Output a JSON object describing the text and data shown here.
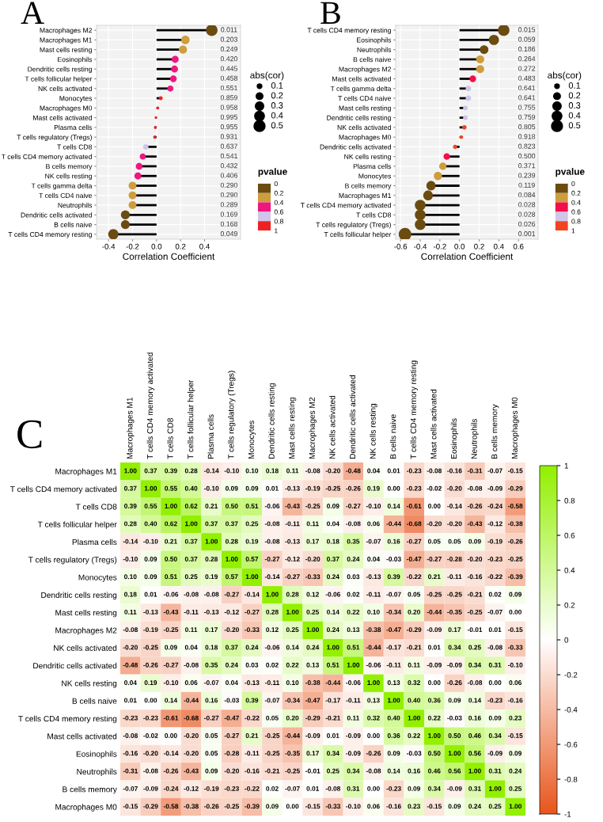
{
  "chart_data": [
    {
      "type": "lollipop",
      "title": "A",
      "orientation": "horizontal",
      "xlabel": "Correlation Coefficient",
      "categories": [
        "Macrophages M2",
        "Macrophages M1",
        "Mast cells resting",
        "Eosinophils",
        "Dendritic cells resting",
        "T cells follicular helper",
        "NK cells activated",
        "Monocytes",
        "Macrophages M0",
        "Mast cells activated",
        "Plasma cells",
        "T cells regulatory (Tregs)",
        "T cells CD8",
        "T cells CD4 memory activated",
        "B cells memory",
        "NK cells resting",
        "T cells gamma delta",
        "T cells CD4 naive",
        "Neutrophils",
        "Dendritic cells activated",
        "B cells naive",
        "T cells CD4 memory resting"
      ],
      "values": [
        0.46,
        0.24,
        0.22,
        0.155,
        0.15,
        0.14,
        0.115,
        0.035,
        0.01,
        -0.005,
        -0.01,
        -0.015,
        -0.09,
        -0.115,
        -0.145,
        -0.155,
        -0.2,
        -0.2,
        -0.2,
        -0.26,
        -0.26,
        -0.36
      ],
      "sizes": [
        0.46,
        0.24,
        0.22,
        0.155,
        0.15,
        0.14,
        0.115,
        0.035,
        0.01,
        0.005,
        0.01,
        0.015,
        0.09,
        0.115,
        0.145,
        0.155,
        0.2,
        0.2,
        0.2,
        0.26,
        0.26,
        0.36
      ],
      "y2_categories": [
        "0.011",
        "0.203",
        "0.249",
        "0.420",
        "0.445",
        "0.458",
        "0.551",
        "0.859",
        "0.958",
        "0.995",
        "0.955",
        "0.931",
        "0.637",
        "0.541",
        "0.432",
        "0.406",
        "0.290",
        "0.290",
        "0.289",
        "0.169",
        "0.168",
        "0.049"
      ],
      "colors": [
        "#6b4b10",
        "#cd9d3e",
        "#cd9d3e",
        "#ee1780",
        "#ee1780",
        "#ee1780",
        "#ee1780",
        "#ee2222",
        "#ee2222",
        "#ee2222",
        "#ee2222",
        "#ee2222",
        "#cfc6ea",
        "#ee1780",
        "#ee1780",
        "#ee1780",
        "#cd9d3e",
        "#cd9d3e",
        "#cd9d3e",
        "#6b4b10",
        "#6b4b10",
        "#6b4b10"
      ],
      "xlim": [
        -0.5,
        0.7
      ],
      "xticks": [
        -0.4,
        -0.2,
        {
          "value": 0,
          "label": "0.0"
        },
        0.2,
        0.4
      ],
      "legend_title": "abs(cor)",
      "size_legend": [
        0.1,
        0.2,
        0.3,
        0.4,
        0.5
      ],
      "clabel": "pvalue",
      "clim": [
        0,
        1
      ],
      "cticks": [
        0,
        0.2,
        0.4,
        0.6,
        0.8,
        1
      ],
      "grid": true
    },
    {
      "type": "lollipop",
      "title": "B",
      "orientation": "horizontal",
      "xlabel": "Correlation Coefficient",
      "categories": [
        "T cells CD4 memory resting",
        "Eosinophils",
        "Neutrophils",
        "B cells naive",
        "Macrophages M2",
        "Mast cells activated",
        "T cells gamma delta",
        "T cells CD4 naive",
        "Mast cells resting",
        "Dendritic cells resting",
        "NK cells activated",
        "Macrophages M0",
        "Dendritic cells activated",
        "NK cells resting",
        "Plasma cells",
        "Monocytes",
        "B cells memory",
        "Macrophages M1",
        "T cells CD4 memory activated",
        "T cells CD8",
        "T cells regulatory (Tregs)",
        "T cells follicular helper"
      ],
      "values": [
        0.45,
        0.35,
        0.25,
        0.21,
        0.21,
        0.135,
        0.09,
        0.09,
        0.06,
        0.06,
        0.05,
        0.02,
        -0.045,
        -0.13,
        -0.17,
        -0.22,
        -0.29,
        -0.32,
        -0.4,
        -0.4,
        -0.4,
        -0.555
      ],
      "sizes": [
        0.45,
        0.35,
        0.25,
        0.21,
        0.21,
        0.135,
        0.09,
        0.09,
        0.06,
        0.06,
        0.05,
        0.02,
        0.045,
        0.13,
        0.17,
        0.22,
        0.29,
        0.32,
        0.4,
        0.4,
        0.4,
        0.555
      ],
      "y2_categories": [
        "0.015",
        "0.059",
        "0.186",
        "0.264",
        "0.272",
        "0.483",
        "0.641",
        "0.641",
        "0.755",
        "0.759",
        "0.805",
        "0.918",
        "0.823",
        "0.500",
        "0.371",
        "0.239",
        "0.119",
        "0.084",
        "0.028",
        "0.028",
        "0.026",
        "0.001"
      ],
      "colors": [
        "#6b4b10",
        "#6b4b10",
        "#6b4b10",
        "#cd9d3e",
        "#cd9d3e",
        "#f0104a",
        "#cfc6ea",
        "#cfc6ea",
        "#cfc6ea",
        "#cfc6ea",
        "#f04420",
        "#f04420",
        "#f04420",
        "#f0104a",
        "#cd9d3e",
        "#cd9d3e",
        "#6b4b10",
        "#6b4b10",
        "#6b4b10",
        "#6b4b10",
        "#6b4b10",
        "#6b4b10"
      ],
      "xlim": [
        -0.65,
        0.8
      ],
      "xticks": [
        -0.6,
        -0.4,
        -0.2,
        {
          "value": 0,
          "label": "0.0"
        },
        0.2,
        0.4,
        0.6
      ],
      "legend_title": "abs(cor)",
      "size_legend": [
        0.1,
        0.2,
        0.3,
        0.4,
        0.5
      ],
      "clabel": "pvalue",
      "clim": [
        0,
        1
      ],
      "cticks": [
        0,
        0.2,
        0.4,
        0.6,
        0.8,
        1
      ],
      "grid": true
    },
    {
      "type": "heatmap",
      "title": "C",
      "data_labels": true,
      "categories": [
        "Macrophages M1",
        "T cells CD4 memory activated",
        "T cells CD8",
        "T cells follicular helper",
        "Plasma cells",
        "T cells regulatory (Tregs)",
        "Monocytes",
        "Dendritic cells resting",
        "Mast cells resting",
        "Macrophages M2",
        "NK cells activated",
        "Dendritic cells activated",
        "NK cells resting",
        "B cells naive",
        "T cells CD4 memory resting",
        "Mast cells activated",
        "Eosinophils",
        "Neutrophils",
        "B cells memory",
        "Macrophages M0"
      ],
      "y_categories": [
        "Macrophages M1",
        "T cells CD4 memory activated",
        "T cells CD8",
        "T cells follicular helper",
        "Plasma cells",
        "T cells regulatory (Tregs)",
        "Monocytes",
        "Dendritic cells resting",
        "Mast cells resting",
        "Macrophages M2",
        "NK cells activated",
        "Dendritic cells activated",
        "NK cells resting",
        "B cells naive",
        "T cells CD4 memory resting",
        "Mast cells activated",
        "Eosinophils",
        "Neutrophils",
        "B cells memory",
        "Macrophages M0"
      ],
      "cells": [
        [
          1.0,
          0.37,
          0.39,
          0.28,
          -0.14,
          -0.1,
          0.1,
          0.18,
          0.11,
          -0.08,
          -0.2,
          -0.48,
          0.04,
          0.01,
          -0.23,
          -0.08,
          -0.16,
          -0.31,
          -0.07,
          -0.15
        ],
        [
          0.37,
          1.0,
          0.55,
          0.4,
          -0.1,
          0.09,
          0.09,
          0.01,
          -0.13,
          -0.19,
          -0.25,
          -0.26,
          0.19,
          0.0,
          -0.23,
          -0.02,
          -0.2,
          -0.08,
          -0.09,
          -0.29
        ],
        [
          0.39,
          0.55,
          1.0,
          0.62,
          0.21,
          0.5,
          0.51,
          -0.06,
          -0.43,
          -0.25,
          0.09,
          -0.27,
          -0.1,
          0.14,
          -0.61,
          0.0,
          -0.14,
          -0.26,
          -0.24,
          -0.58
        ],
        [
          0.28,
          0.4,
          0.62,
          1.0,
          0.37,
          0.37,
          0.25,
          -0.08,
          -0.11,
          0.11,
          0.04,
          -0.08,
          0.06,
          -0.44,
          -0.68,
          -0.2,
          -0.2,
          -0.43,
          -0.12,
          -0.38
        ],
        [
          -0.14,
          -0.1,
          0.21,
          0.37,
          1.0,
          0.28,
          0.19,
          -0.08,
          -0.13,
          0.17,
          0.18,
          0.35,
          -0.07,
          0.16,
          -0.27,
          0.05,
          0.05,
          0.09,
          -0.19,
          -0.26
        ],
        [
          -0.1,
          0.09,
          0.5,
          0.37,
          0.28,
          1.0,
          0.57,
          -0.27,
          -0.12,
          -0.2,
          0.37,
          0.24,
          0.04,
          -0.03,
          -0.47,
          -0.27,
          -0.28,
          -0.2,
          -0.23,
          -0.25
        ],
        [
          0.1,
          0.09,
          0.51,
          0.25,
          0.19,
          0.57,
          1.0,
          -0.14,
          -0.27,
          -0.33,
          0.24,
          0.03,
          -0.13,
          0.39,
          -0.22,
          0.21,
          -0.11,
          -0.16,
          -0.22,
          -0.39
        ],
        [
          0.18,
          0.01,
          -0.06,
          -0.08,
          -0.08,
          -0.27,
          -0.14,
          1.0,
          0.28,
          0.12,
          -0.06,
          0.02,
          -0.11,
          -0.07,
          0.05,
          -0.25,
          -0.25,
          -0.21,
          0.02,
          0.09
        ],
        [
          0.11,
          -0.13,
          -0.43,
          -0.11,
          -0.13,
          -0.12,
          -0.27,
          0.28,
          1.0,
          0.25,
          0.14,
          0.22,
          0.1,
          -0.34,
          0.2,
          -0.44,
          -0.35,
          -0.25,
          -0.07,
          0.0
        ],
        [
          -0.08,
          -0.19,
          -0.25,
          0.11,
          0.17,
          -0.2,
          -0.33,
          0.12,
          0.25,
          1.0,
          0.24,
          0.13,
          -0.38,
          -0.47,
          -0.29,
          -0.09,
          0.17,
          -0.01,
          0.01,
          -0.15
        ],
        [
          -0.2,
          -0.25,
          0.09,
          0.04,
          0.18,
          0.37,
          0.24,
          -0.06,
          0.14,
          0.24,
          1.0,
          0.51,
          -0.44,
          -0.17,
          -0.21,
          0.01,
          0.34,
          0.25,
          -0.08,
          -0.33
        ],
        [
          -0.48,
          -0.26,
          -0.27,
          -0.08,
          0.35,
          0.24,
          0.03,
          0.02,
          0.22,
          0.13,
          0.51,
          1.0,
          -0.06,
          -0.11,
          0.11,
          -0.09,
          -0.09,
          0.34,
          0.31,
          -0.1
        ],
        [
          0.04,
          0.19,
          -0.1,
          0.06,
          -0.07,
          0.04,
          -0.13,
          -0.11,
          0.1,
          -0.38,
          -0.44,
          -0.06,
          1.0,
          0.13,
          0.32,
          0.0,
          -0.26,
          -0.08,
          0.0,
          0.06
        ],
        [
          0.01,
          0.0,
          0.14,
          -0.44,
          0.16,
          -0.03,
          0.39,
          -0.07,
          -0.34,
          -0.47,
          -0.17,
          -0.11,
          0.13,
          1.0,
          0.4,
          0.36,
          0.09,
          0.14,
          -0.23,
          -0.16
        ],
        [
          -0.23,
          -0.23,
          -0.61,
          -0.68,
          -0.27,
          -0.47,
          -0.22,
          0.05,
          0.2,
          -0.29,
          -0.21,
          0.11,
          0.32,
          0.4,
          1.0,
          0.22,
          -0.03,
          0.16,
          0.09,
          0.23
        ],
        [
          -0.08,
          -0.02,
          0.0,
          -0.2,
          0.05,
          -0.27,
          0.21,
          -0.25,
          -0.44,
          -0.09,
          0.01,
          -0.09,
          0.0,
          0.36,
          0.22,
          1.0,
          0.5,
          0.46,
          0.34,
          -0.15
        ],
        [
          -0.16,
          -0.2,
          -0.14,
          -0.2,
          0.05,
          -0.28,
          -0.11,
          -0.25,
          -0.35,
          0.17,
          0.34,
          -0.09,
          -0.26,
          0.09,
          -0.03,
          0.5,
          1.0,
          0.56,
          -0.09,
          0.09
        ],
        [
          -0.31,
          -0.08,
          -0.26,
          -0.43,
          0.09,
          -0.2,
          -0.16,
          -0.21,
          -0.25,
          -0.01,
          0.25,
          0.34,
          -0.08,
          0.14,
          0.16,
          0.46,
          0.56,
          1.0,
          0.31,
          0.24
        ],
        [
          -0.07,
          -0.09,
          -0.24,
          -0.12,
          -0.19,
          -0.23,
          -0.22,
          0.02,
          -0.07,
          0.01,
          -0.08,
          0.31,
          0.0,
          -0.23,
          0.09,
          0.34,
          -0.09,
          0.31,
          1.0,
          0.25
        ],
        [
          -0.15,
          -0.29,
          -0.58,
          -0.38,
          -0.26,
          -0.25,
          -0.39,
          0.09,
          0.0,
          -0.15,
          -0.33,
          -0.1,
          0.06,
          -0.16,
          0.23,
          -0.15,
          0.09,
          0.24,
          0.25,
          1.0
        ]
      ],
      "cell_labels": [
        [
          "1.00",
          "0.37",
          "0.39",
          "0.28",
          "-0.14",
          "-0.10",
          "0.10",
          "0.18",
          "0.11",
          "-0.08",
          "-0.20",
          "-0.48",
          "0.04",
          "0.01",
          "-0.23",
          "-0.08",
          "-0.16",
          "-0.31",
          "-0.07",
          "-0.15"
        ],
        [
          "0.37",
          "1.00",
          "0.55",
          "0.40",
          "-0.10",
          "0.09",
          "0.09",
          "0.01",
          "-0.13",
          "-0.19",
          "-0.25",
          "-0.26",
          "0.19",
          "0.00",
          "-0.23",
          "-0.02",
          "-0.20",
          "-0.08",
          "-0.09",
          "-0.29"
        ],
        [
          "0.39",
          "0.55",
          "1.00",
          "0.62",
          "0.21",
          "0.50",
          "0.51",
          "-0.06",
          "-0.43",
          "-0.25",
          "0.09",
          "-0.27",
          "-0.10",
          "0.14",
          "-0.61",
          "0.00",
          "-0.14",
          "-0.26",
          "-0.24",
          "-0.58"
        ],
        [
          "0.28",
          "0.40",
          "0.62",
          "1.00",
          "0.37",
          "0.37",
          "0.25",
          "-0.08",
          "-0.11",
          "0.11",
          "0.04",
          "-0.08",
          "0.06",
          "-0.44",
          "-0.68",
          "-0.20",
          "-0.20",
          "-0.43",
          "-0.12",
          "-0.38"
        ],
        [
          "-0.14",
          "-0.10",
          "0.21",
          "0.37",
          "1.00",
          "0.28",
          "0.19",
          "-0.08",
          "-0.13",
          "0.17",
          "0.18",
          "0.35",
          "-0.07",
          "0.16",
          "-0.27",
          "0.05",
          "0.05",
          "0.09",
          "-0.19",
          "-0.26"
        ],
        [
          "-0.10",
          "0.09",
          "0.50",
          "0.37",
          "0.28",
          "1.00",
          "0.57",
          "-0.27",
          "-0.12",
          "-0.20",
          "0.37",
          "0.24",
          "0.04",
          "-0.03",
          "-0.47",
          "-0.27",
          "-0.28",
          "-0.20",
          "-0.23",
          "-0.25"
        ],
        [
          "0.10",
          "0.09",
          "0.51",
          "0.25",
          "0.19",
          "0.57",
          "1.00",
          "-0.14",
          "-0.27",
          "-0.33",
          "0.24",
          "0.03",
          "-0.13",
          "0.39",
          "-0.22",
          "0.21",
          "-0.11",
          "-0.16",
          "-0.22",
          "-0.39"
        ],
        [
          "0.18",
          "0.01",
          "-0.06",
          "-0.08",
          "-0.08",
          "-0.27",
          "-0.14",
          "1.00",
          "0.28",
          "0.12",
          "-0.06",
          "0.02",
          "-0.11",
          "-0.07",
          "0.05",
          "-0.25",
          "-0.25",
          "-0.21",
          "0.02",
          "0.09"
        ],
        [
          "0.11",
          "-0.13",
          "-0.43",
          "-0.11",
          "-0.13",
          "-0.12",
          "-0.27",
          "0.28",
          "1.00",
          "0.25",
          "0.14",
          "0.22",
          "0.10",
          "-0.34",
          "0.20",
          "-0.44",
          "-0.35",
          "-0.25",
          "-0.07",
          "0.00"
        ],
        [
          "-0.08",
          "-0.19",
          "-0.25",
          "0.11",
          "0.17",
          "-0.20",
          "-0.33",
          "0.12",
          "0.25",
          "1.00",
          "0.24",
          "0.13",
          "-0.38",
          "-0.47",
          "-0.29",
          "-0.09",
          "0.17",
          "-0.01",
          "0.01",
          "-0.15"
        ],
        [
          "-0.20",
          "-0.25",
          "0.09",
          "0.04",
          "0.18",
          "0.37",
          "0.24",
          "-0.06",
          "0.14",
          "0.24",
          "1.00",
          "0.51",
          "-0.44",
          "-0.17",
          "-0.21",
          "0.01",
          "0.34",
          "0.25",
          "-0.08",
          "-0.33"
        ],
        [
          "-0.48",
          "-0.26",
          "-0.27",
          "-0.08",
          "0.35",
          "0.24",
          "0.03",
          "0.02",
          "0.22",
          "0.13",
          "0.51",
          "1.00",
          "-0.06",
          "-0.11",
          "0.11",
          "-0.09",
          "-0.09",
          "0.34",
          "0.31",
          "-0.10"
        ],
        [
          "0.04",
          "0.19",
          "-0.10",
          "0.06",
          "-0.07",
          "0.04",
          "-0.13",
          "-0.11",
          "0.10",
          "-0.38",
          "-0.44",
          "-0.06",
          "1.00",
          "0.13",
          "0.32",
          "0.00",
          "-0.26",
          "-0.08",
          "0.00",
          "0.06"
        ],
        [
          "0.01",
          "0.00",
          "0.14",
          "-0.44",
          "0.16",
          "-0.03",
          "0.39",
          "-0.07",
          "-0.34",
          "-0.47",
          "-0.17",
          "-0.11",
          "0.13",
          "1.00",
          "0.40",
          "0.36",
          "0.09",
          "0.14",
          "-0.23",
          "-0.16"
        ],
        [
          "-0.23",
          "-0.23",
          "-0.61",
          "-0.68",
          "-0.27",
          "-0.47",
          "-0.22",
          "0.05",
          "0.20",
          "-0.29",
          "-0.21",
          "0.11",
          "0.32",
          "0.40",
          "1.00",
          "0.22",
          "-0.03",
          "0.16",
          "0.09",
          "0.23"
        ],
        [
          "-0.08",
          "-0.02",
          "0.00",
          "-0.20",
          "0.05",
          "-0.27",
          "0.21",
          "-0.25",
          "-0.44",
          "-0.09",
          "0.01",
          "-0.09",
          "0.00",
          "0.36",
          "0.22",
          "1.00",
          "0.50",
          "0.46",
          "0.34",
          "-0.15"
        ],
        [
          "-0.16",
          "-0.20",
          "-0.14",
          "-0.20",
          "0.05",
          "-0.28",
          "-0.11",
          "-0.25",
          "-0.35",
          "0.17",
          "0.34",
          "-0.09",
          "-0.26",
          "0.09",
          "-0.03",
          "0.50",
          "1.00",
          "0.56",
          "-0.09",
          "0.09"
        ],
        [
          "-0.31",
          "-0.08",
          "-0.26",
          "-0.43",
          "0.09",
          "-0.20",
          "-0.16",
          "-0.21",
          "-0.25",
          "-0.01",
          "0.25",
          "0.34",
          "-0.08",
          "0.14",
          "0.16",
          "0.46",
          "0.56",
          "1.00",
          "0.31",
          "0.24"
        ],
        [
          "-0.07",
          "-0.09",
          "-0.24",
          "-0.12",
          "-0.19",
          "-0.23",
          "-0.22",
          "0.02",
          "-0.07",
          "0.01",
          "-0.08",
          "0.31",
          "0.00",
          "-0.23",
          "0.09",
          "0.34",
          "-0.09",
          "0.31",
          "1.00",
          "0.25"
        ],
        [
          "-0.15",
          "-0.29",
          "-0.58",
          "-0.38",
          "-0.26",
          "-0.25",
          "-0.39",
          "0.09",
          "0.00",
          "-0.15",
          "-0.33",
          "-0.10",
          "0.06",
          "-0.16",
          "0.23",
          "-0.15",
          "0.09",
          "0.24",
          "0.25",
          "1.00"
        ]
      ],
      "clim": [
        -1,
        1
      ],
      "cticks": [
        -1,
        -0.8,
        -0.6,
        -0.4,
        -0.2,
        0,
        0.2,
        0.4,
        0.6,
        0.8,
        1
      ]
    }
  ]
}
